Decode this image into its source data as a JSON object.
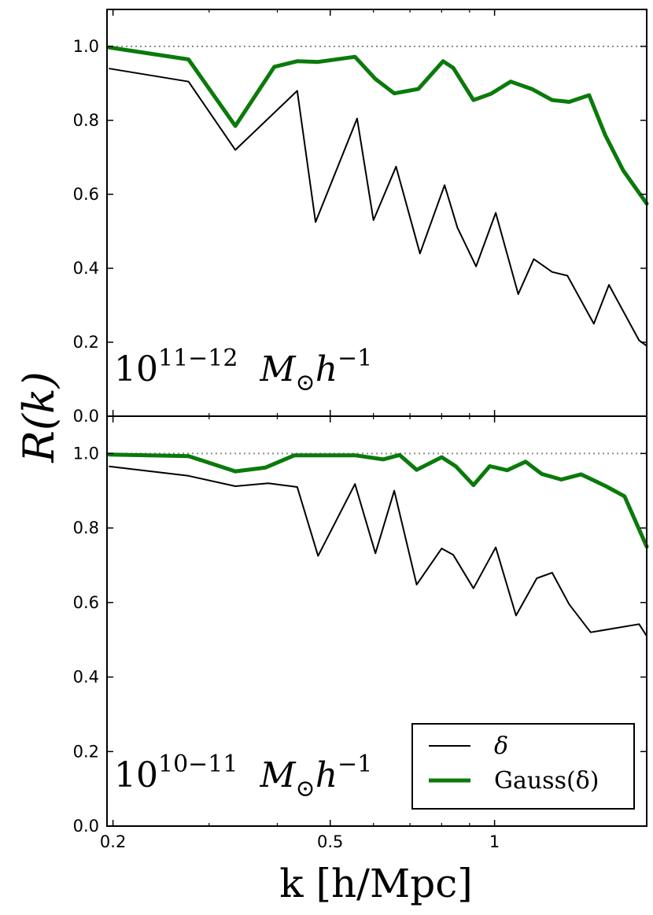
{
  "chart_data": {
    "type": "line",
    "xlabel": "k [h/Mpc]",
    "ylabel": "R(k)",
    "xscale": "log",
    "xlim": [
      0.195,
      1.9
    ],
    "x_ticks": [
      0.2,
      0.5,
      1
    ],
    "x_tick_labels": [
      "0.2",
      "0.5",
      "1"
    ],
    "legend": {
      "placement": "lower-right of bottom panel",
      "entries": [
        "δ",
        "Gauss(δ)"
      ]
    },
    "colors": {
      "delta": "#000000",
      "gauss": "#0a7a0a",
      "reference": "#8c8c8c"
    },
    "reference_line": 1.0,
    "panels": [
      {
        "label": "10^{11−12} M⊙h^{−1}",
        "label_base": "10",
        "label_exp": "11−12",
        "label_mass": "M",
        "label_sun": "⊙",
        "label_h": "h",
        "label_hexp": "−1",
        "ylim": [
          0.0,
          1.1
        ],
        "y_ticks": [
          0.0,
          0.2,
          0.4,
          0.6,
          0.8,
          1.0
        ],
        "y_tick_labels": [
          "0.0",
          "0.2",
          "0.4",
          "0.6",
          "0.8",
          "1.0"
        ],
        "series": [
          {
            "name": "δ",
            "key": "delta",
            "x": [
              0.197,
              0.275,
              0.335,
              0.435,
              0.47,
              0.56,
              0.6,
              0.66,
              0.73,
              0.81,
              0.855,
              0.925,
              1.005,
              1.105,
              1.18,
              1.275,
              1.36,
              1.52,
              1.62,
              1.84,
              1.9
            ],
            "y": [
              0.94,
              0.905,
              0.72,
              0.88,
              0.525,
              0.805,
              0.53,
              0.675,
              0.44,
              0.625,
              0.51,
              0.405,
              0.55,
              0.33,
              0.425,
              0.39,
              0.38,
              0.25,
              0.355,
              0.205,
              0.19
            ]
          },
          {
            "name": "Gauss(δ)",
            "key": "gauss",
            "x": [
              0.197,
              0.275,
              0.335,
              0.395,
              0.435,
              0.475,
              0.555,
              0.605,
              0.655,
              0.725,
              0.805,
              0.84,
              0.915,
              0.985,
              1.07,
              1.17,
              1.275,
              1.37,
              1.49,
              1.595,
              1.72,
              1.9
            ],
            "y": [
              0.997,
              0.965,
              0.785,
              0.945,
              0.96,
              0.958,
              0.972,
              0.912,
              0.873,
              0.885,
              0.96,
              0.942,
              0.855,
              0.872,
              0.905,
              0.885,
              0.855,
              0.85,
              0.868,
              0.76,
              0.665,
              0.575
            ]
          }
        ]
      },
      {
        "label": "10^{10−11} M⊙h^{−1}",
        "label_base": "10",
        "label_exp": "10−11",
        "label_mass": "M",
        "label_sun": "⊙",
        "label_h": "h",
        "label_hexp": "−1",
        "ylim": [
          0.0,
          1.1
        ],
        "y_ticks": [
          0.0,
          0.2,
          0.4,
          0.6,
          0.8,
          1.0
        ],
        "y_tick_labels": [
          "0.0",
          "0.2",
          "0.4",
          "0.6",
          "0.8",
          "1.0"
        ],
        "series": [
          {
            "name": "δ",
            "key": "delta",
            "x": [
              0.197,
              0.275,
              0.335,
              0.385,
              0.435,
              0.475,
              0.555,
              0.605,
              0.655,
              0.72,
              0.8,
              0.84,
              0.915,
              1.005,
              1.095,
              1.195,
              1.275,
              1.37,
              1.5,
              1.84,
              1.9
            ],
            "y": [
              0.965,
              0.94,
              0.912,
              0.92,
              0.91,
              0.725,
              0.918,
              0.732,
              0.9,
              0.648,
              0.745,
              0.728,
              0.638,
              0.748,
              0.565,
              0.665,
              0.68,
              0.595,
              0.52,
              0.542,
              0.51
            ]
          },
          {
            "name": "Gauss(δ)",
            "key": "gauss",
            "x": [
              0.197,
              0.275,
              0.335,
              0.38,
              0.43,
              0.555,
              0.625,
              0.67,
              0.72,
              0.8,
              0.85,
              0.915,
              0.98,
              1.055,
              1.14,
              1.22,
              1.325,
              1.44,
              1.6,
              1.73,
              1.9
            ],
            "y": [
              0.997,
              0.993,
              0.952,
              0.962,
              0.995,
              0.995,
              0.984,
              0.996,
              0.956,
              0.99,
              0.965,
              0.915,
              0.966,
              0.955,
              0.978,
              0.945,
              0.93,
              0.944,
              0.912,
              0.885,
              0.75
            ]
          }
        ]
      }
    ]
  }
}
